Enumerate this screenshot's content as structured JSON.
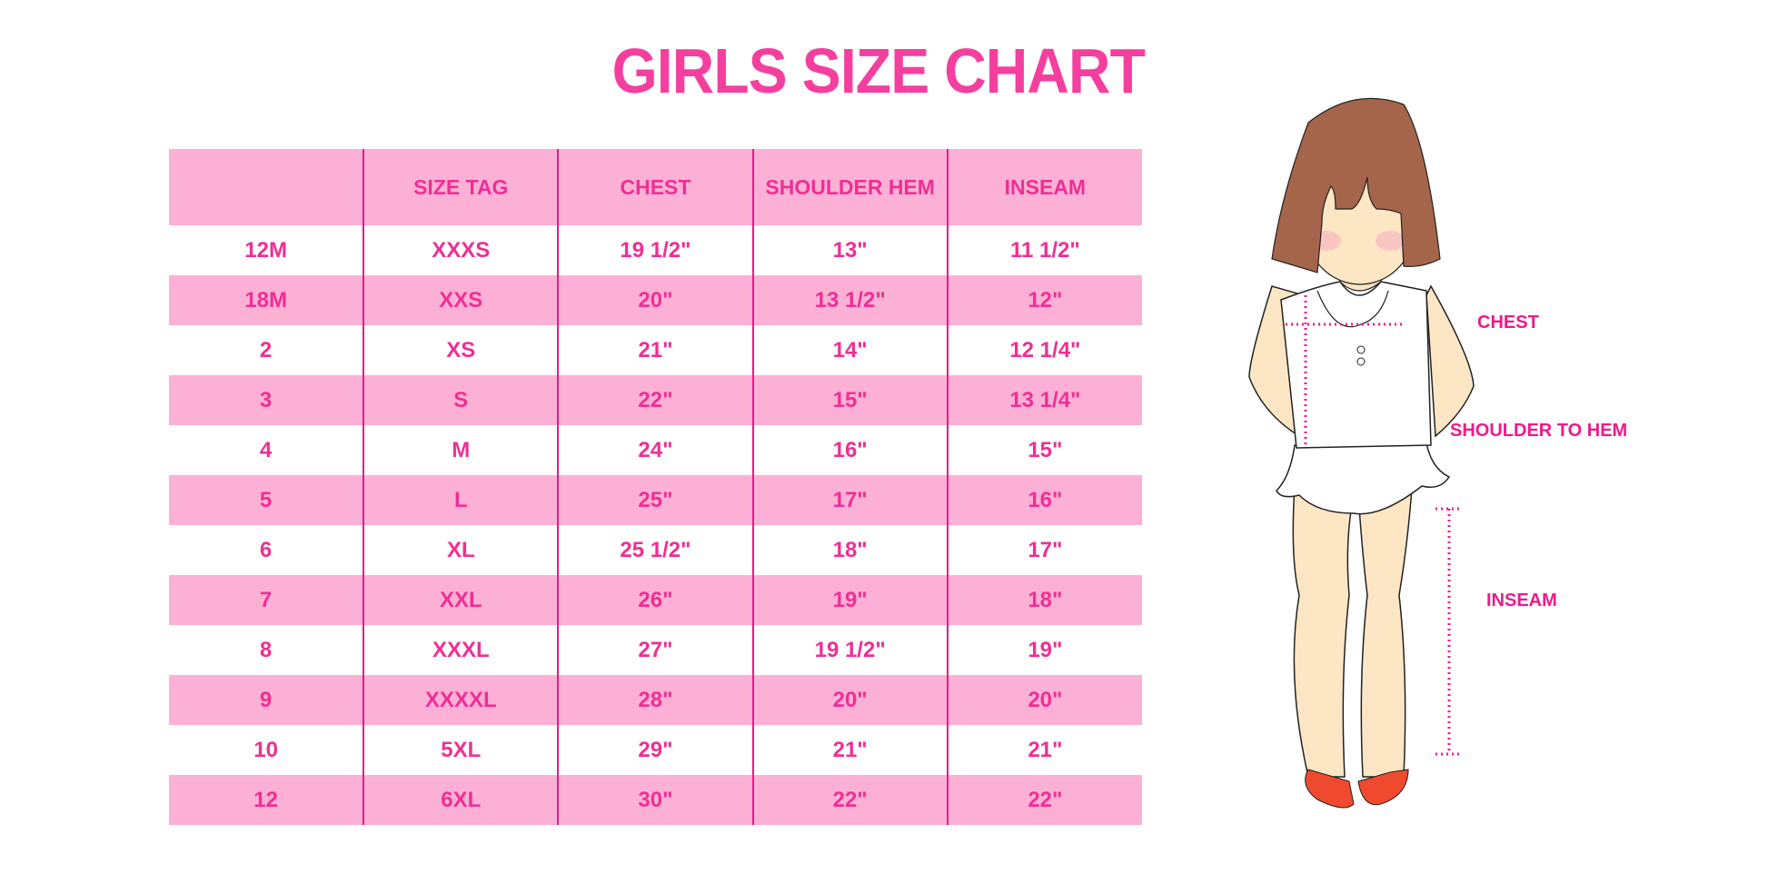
{
  "title": "GIRLS SIZE CHART",
  "table": {
    "headers": [
      "",
      "SIZE TAG",
      "CHEST",
      "SHOULDER HEM",
      "INSEAM"
    ],
    "rows": [
      [
        "12M",
        "XXXS",
        "19 1/2\"",
        "13\"",
        "11 1/2\""
      ],
      [
        "18M",
        "XXS",
        "20\"",
        "13 1/2\"",
        "12\""
      ],
      [
        "2",
        "XS",
        "21\"",
        "14\"",
        "12 1/4\""
      ],
      [
        "3",
        "S",
        "22\"",
        "15\"",
        "13 1/4\""
      ],
      [
        "4",
        "M",
        "24\"",
        "16\"",
        "15\""
      ],
      [
        "5",
        "L",
        "25\"",
        "17\"",
        "16\""
      ],
      [
        "6",
        "XL",
        "25 1/2\"",
        "18\"",
        "17\""
      ],
      [
        "7",
        "XXL",
        "26\"",
        "19\"",
        "18\""
      ],
      [
        "8",
        "XXXL",
        "27\"",
        "19 1/2\"",
        "19\""
      ],
      [
        "9",
        "XXXXL",
        "28\"",
        "20\"",
        "20\""
      ],
      [
        "10",
        "5XL",
        "29\"",
        "21\"",
        "21\""
      ],
      [
        "12",
        "6XL",
        "30\"",
        "22\"",
        "22\""
      ]
    ]
  },
  "figure": {
    "labels": {
      "chest": "CHEST",
      "shoulder_to_hem": "SHOULDER TO HEM",
      "inseam": "INSEAM"
    }
  },
  "colors": {
    "accent": "#f53f9f",
    "header_bg": "#fdb0d5",
    "divider": "#e8198b",
    "hair": "#a5654a",
    "skin": "#fde6c4",
    "shoes": "#f04a2e"
  }
}
